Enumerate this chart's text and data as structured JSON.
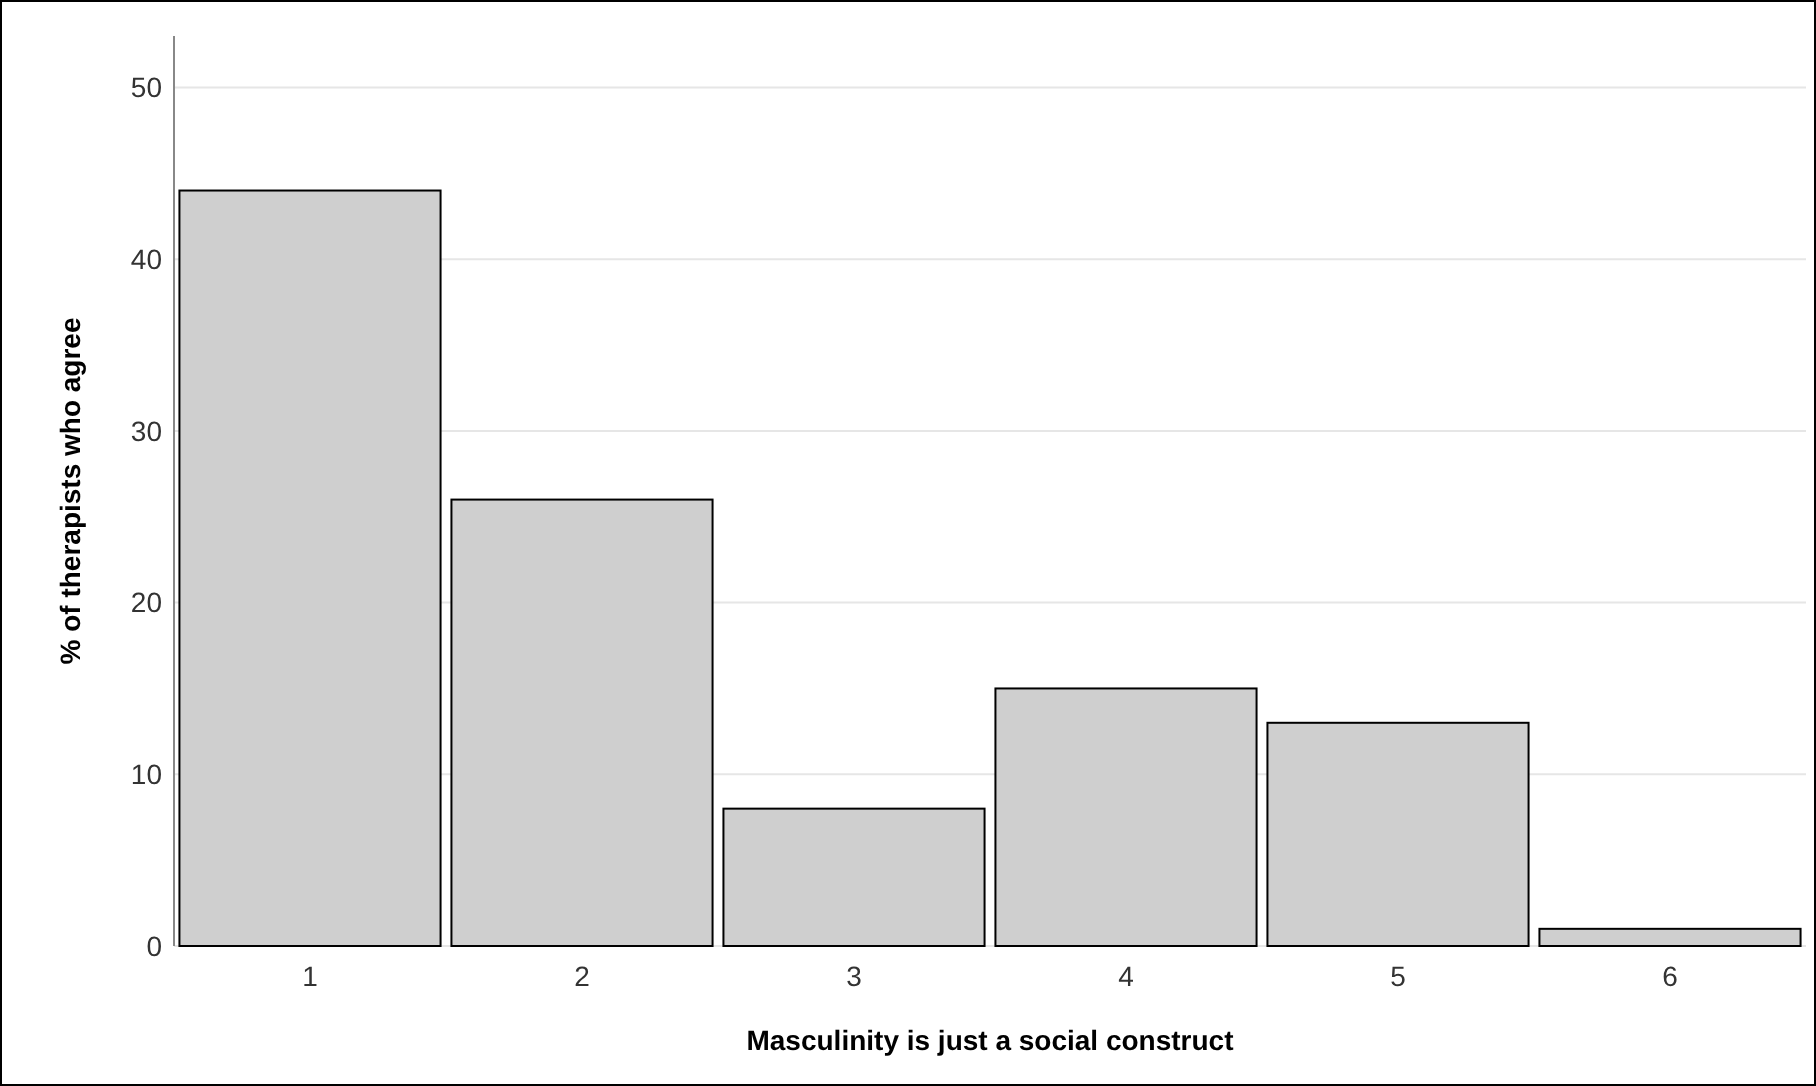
{
  "chart_data": {
    "type": "bar",
    "xlabel": "Masculinity is just a social construct",
    "ylabel": "% of therapists who agree",
    "categories": [
      "1",
      "2",
      "3",
      "4",
      "5",
      "6"
    ],
    "values": [
      44,
      26,
      8,
      15,
      13,
      1
    ],
    "color": "#cfcfcf",
    "ylim": [
      0,
      53
    ],
    "yticks": [
      0,
      10,
      20,
      30,
      40,
      50
    ],
    "grid": "y"
  }
}
